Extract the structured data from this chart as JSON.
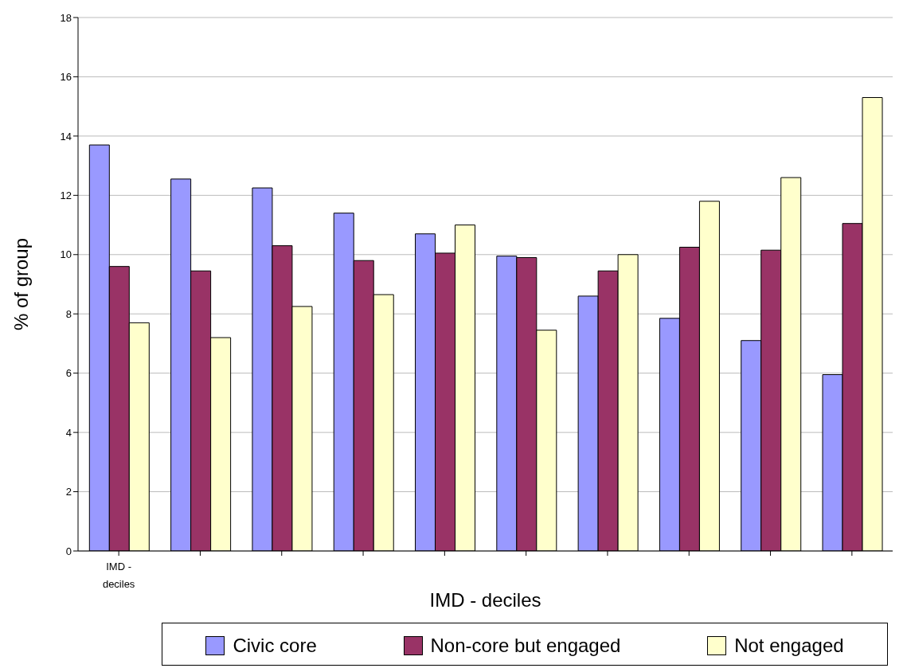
{
  "chart_data": {
    "type": "bar",
    "xlabel": "IMD - deciles",
    "ylabel": "% of group",
    "categories": [
      "IMD - deciles",
      null,
      null,
      null,
      null,
      null,
      null,
      null,
      null,
      null
    ],
    "series": [
      {
        "name": "Civic core",
        "color": "#9999ff",
        "values": [
          13.7,
          12.55,
          12.25,
          11.4,
          10.7,
          9.95,
          8.6,
          7.85,
          7.1,
          5.95
        ]
      },
      {
        "name": "Non-core but engaged",
        "color": "#993366",
        "values": [
          9.6,
          9.45,
          10.3,
          9.8,
          10.05,
          9.9,
          9.45,
          10.25,
          10.15,
          11.05
        ]
      },
      {
        "name": "Not engaged",
        "color": "#ffffcc",
        "values": [
          7.7,
          7.2,
          8.25,
          8.65,
          11.0,
          7.45,
          10.0,
          11.8,
          12.6,
          15.3
        ]
      }
    ],
    "ylim": [
      0,
      18
    ],
    "yticks": [
      0,
      2,
      4,
      6,
      8,
      10,
      12,
      14,
      16,
      18
    ],
    "grid": "y",
    "legend": "bottom"
  }
}
